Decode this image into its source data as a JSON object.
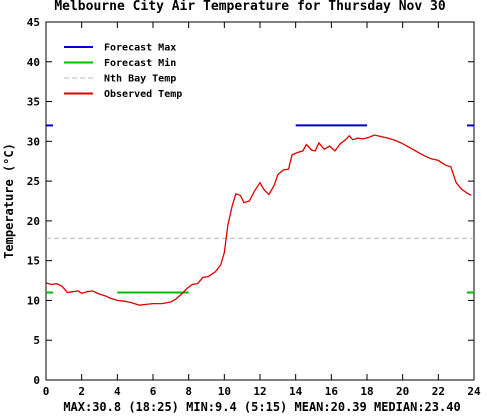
{
  "chart_data": {
    "type": "line",
    "title": "Melbourne City Air Temperature for Thursday Nov 30",
    "xlabel": "",
    "ylabel": "Temperature (°C)",
    "xlim": [
      0,
      24
    ],
    "ylim": [
      0,
      45
    ],
    "x_ticks": [
      0,
      2,
      4,
      6,
      8,
      10,
      12,
      14,
      16,
      18,
      20,
      22,
      24
    ],
    "y_ticks": [
      0,
      5,
      10,
      15,
      20,
      25,
      30,
      35,
      40,
      45
    ],
    "grid": false,
    "legend_placement": "top-left",
    "legend": [
      {
        "label": "Forecast Max",
        "color": "#0000cc",
        "style": "solid"
      },
      {
        "label": "Forecast Min",
        "color": "#00bb00",
        "style": "solid"
      },
      {
        "label": "Nth Bay Temp",
        "color": "#bbbbbb",
        "style": "dashed"
      },
      {
        "label": "Observed Temp",
        "color": "#dd0000",
        "style": "solid"
      }
    ],
    "series": [
      {
        "name": "Forecast Max",
        "color": "#0000cc",
        "points": [
          [
            14,
            32
          ],
          [
            18,
            32
          ]
        ],
        "edge_marker": 32
      },
      {
        "name": "Forecast Min",
        "color": "#00bb00",
        "points": [
          [
            4,
            11
          ],
          [
            8,
            11
          ]
        ],
        "edge_marker": 11
      },
      {
        "name": "Nth Bay Temp",
        "color": "#bbbbbb",
        "points": [
          [
            0,
            17.8
          ],
          [
            24,
            17.8
          ]
        ]
      },
      {
        "name": "Observed Temp",
        "color": "#dd0000",
        "points": [
          [
            0,
            12.2
          ],
          [
            0.3,
            12.0
          ],
          [
            0.6,
            12.1
          ],
          [
            0.9,
            11.8
          ],
          [
            1.2,
            11.0
          ],
          [
            1.5,
            11.1
          ],
          [
            1.8,
            11.2
          ],
          [
            2.0,
            10.9
          ],
          [
            2.3,
            11.1
          ],
          [
            2.6,
            11.2
          ],
          [
            3.0,
            10.8
          ],
          [
            3.3,
            10.6
          ],
          [
            3.6,
            10.3
          ],
          [
            4.0,
            10.0
          ],
          [
            4.4,
            9.9
          ],
          [
            4.8,
            9.7
          ],
          [
            5.25,
            9.4
          ],
          [
            5.6,
            9.5
          ],
          [
            6.0,
            9.6
          ],
          [
            6.5,
            9.6
          ],
          [
            7.0,
            9.8
          ],
          [
            7.3,
            10.2
          ],
          [
            7.6,
            10.8
          ],
          [
            7.9,
            11.5
          ],
          [
            8.2,
            12.0
          ],
          [
            8.5,
            12.1
          ],
          [
            8.8,
            12.9
          ],
          [
            9.1,
            13.0
          ],
          [
            9.5,
            13.6
          ],
          [
            9.8,
            14.5
          ],
          [
            10.0,
            16.0
          ],
          [
            10.2,
            19.5
          ],
          [
            10.45,
            22.0
          ],
          [
            10.65,
            23.4
          ],
          [
            10.9,
            23.2
          ],
          [
            11.1,
            22.3
          ],
          [
            11.4,
            22.5
          ],
          [
            11.7,
            23.8
          ],
          [
            12.0,
            24.8
          ],
          [
            12.2,
            24.0
          ],
          [
            12.5,
            23.3
          ],
          [
            12.8,
            24.5
          ],
          [
            13.0,
            25.8
          ],
          [
            13.3,
            26.4
          ],
          [
            13.6,
            26.5
          ],
          [
            13.8,
            28.3
          ],
          [
            14.1,
            28.6
          ],
          [
            14.4,
            28.8
          ],
          [
            14.6,
            29.6
          ],
          [
            14.9,
            28.9
          ],
          [
            15.1,
            28.8
          ],
          [
            15.3,
            29.8
          ],
          [
            15.6,
            29.0
          ],
          [
            15.9,
            29.4
          ],
          [
            16.2,
            28.8
          ],
          [
            16.5,
            29.7
          ],
          [
            16.8,
            30.2
          ],
          [
            17.0,
            30.7
          ],
          [
            17.2,
            30.2
          ],
          [
            17.5,
            30.4
          ],
          [
            17.8,
            30.3
          ],
          [
            18.1,
            30.5
          ],
          [
            18.42,
            30.8
          ],
          [
            18.8,
            30.6
          ],
          [
            19.2,
            30.4
          ],
          [
            19.6,
            30.1
          ],
          [
            20.0,
            29.7
          ],
          [
            20.4,
            29.2
          ],
          [
            20.8,
            28.7
          ],
          [
            21.2,
            28.2
          ],
          [
            21.6,
            27.8
          ],
          [
            22.0,
            27.6
          ],
          [
            22.4,
            27.0
          ],
          [
            22.7,
            26.8
          ],
          [
            23.0,
            24.8
          ],
          [
            23.3,
            24.0
          ],
          [
            23.6,
            23.5
          ],
          [
            23.85,
            23.2
          ]
        ]
      }
    ],
    "stats": "MAX:30.8 (18:25) MIN:9.4 (5:15) MEAN:20.39 MEDIAN:23.40"
  }
}
